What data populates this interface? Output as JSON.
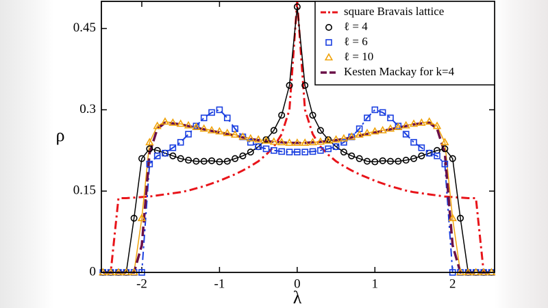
{
  "chart_data": {
    "type": "line",
    "x_label": "λ",
    "y_label": "ρ",
    "xlim": [
      -2.52,
      2.54
    ],
    "ylim": [
      0,
      0.5
    ],
    "xticks": [
      -2,
      -1,
      0,
      1,
      2
    ],
    "yticks": [
      0,
      0.15,
      0.3,
      0.45
    ],
    "legend": "upper right",
    "x": [
      -2.5,
      -2.4,
      -2.3,
      -2.2,
      -2.1,
      -2.0,
      -1.9,
      -1.8,
      -1.7,
      -1.6,
      -1.5,
      -1.4,
      -1.3,
      -1.2,
      -1.1,
      -1.0,
      -0.9,
      -0.8,
      -0.7,
      -0.6,
      -0.5,
      -0.4,
      -0.3,
      -0.2,
      -0.1,
      0,
      0.1,
      0.2,
      0.3,
      0.4,
      0.5,
      0.6,
      0.7,
      0.8,
      0.9,
      1.0,
      1.1,
      1.2,
      1.3,
      1.4,
      1.5,
      1.6,
      1.7,
      1.8,
      1.9,
      2.0,
      2.1,
      2.2,
      2.3,
      2.4,
      2.5
    ],
    "series": [
      {
        "name": "square Bravais lattice",
        "color": "#e8141a",
        "line": "dashdot",
        "width": 3,
        "values": [
          0,
          0,
          0.137,
          0.137,
          0.138,
          0.139,
          0.14,
          0.142,
          0.144,
          0.146,
          0.148,
          0.151,
          0.155,
          0.159,
          0.164,
          0.169,
          0.175,
          0.181,
          0.188,
          0.196,
          0.205,
          0.217,
          0.232,
          0.255,
          0.3,
          0.5,
          0.3,
          0.255,
          0.232,
          0.217,
          0.205,
          0.196,
          0.188,
          0.181,
          0.175,
          0.169,
          0.164,
          0.159,
          0.155,
          0.151,
          0.148,
          0.146,
          0.144,
          0.142,
          0.14,
          0.139,
          0.138,
          0.137,
          0.137,
          0,
          0
        ]
      },
      {
        "name": "ℓ = 4",
        "color": "#000000",
        "line": "solid",
        "width": 1.5,
        "marker": "circle",
        "values": [
          0,
          0,
          0,
          0,
          0.1,
          0.21,
          0.228,
          0.225,
          0.22,
          0.215,
          0.21,
          0.207,
          0.205,
          0.205,
          0.206,
          0.204,
          0.205,
          0.21,
          0.215,
          0.222,
          0.232,
          0.245,
          0.262,
          0.29,
          0.345,
          0.49,
          0.345,
          0.29,
          0.262,
          0.245,
          0.232,
          0.222,
          0.215,
          0.21,
          0.205,
          0.204,
          0.206,
          0.205,
          0.205,
          0.207,
          0.21,
          0.215,
          0.22,
          0.225,
          0.228,
          0.21,
          0.1,
          0,
          0,
          0,
          0
        ]
      },
      {
        "name": "ℓ = 6",
        "color": "#1a3fe0",
        "line": "dashdot",
        "width": 2,
        "marker": "square",
        "values": [
          0,
          0,
          0,
          0,
          0,
          0,
          0.2,
          0.215,
          0.22,
          0.23,
          0.24,
          0.255,
          0.27,
          0.285,
          0.295,
          0.3,
          0.285,
          0.265,
          0.25,
          0.24,
          0.232,
          0.228,
          0.225,
          0.223,
          0.222,
          0.222,
          0.222,
          0.223,
          0.225,
          0.228,
          0.232,
          0.24,
          0.25,
          0.265,
          0.285,
          0.3,
          0.295,
          0.285,
          0.27,
          0.255,
          0.24,
          0.23,
          0.22,
          0.215,
          0.2,
          0,
          0,
          0,
          0,
          0,
          0
        ]
      },
      {
        "name": "ℓ = 10",
        "color": "#f0a30a",
        "line": "solid",
        "width": 1.5,
        "marker": "triangle",
        "values": [
          0,
          0,
          0,
          0,
          0,
          0.1,
          0.24,
          0.27,
          0.278,
          0.276,
          0.274,
          0.271,
          0.268,
          0.265,
          0.262,
          0.26,
          0.257,
          0.254,
          0.25,
          0.247,
          0.245,
          0.243,
          0.241,
          0.24,
          0.239,
          0.239,
          0.239,
          0.24,
          0.241,
          0.243,
          0.245,
          0.247,
          0.25,
          0.254,
          0.257,
          0.26,
          0.262,
          0.265,
          0.268,
          0.271,
          0.274,
          0.276,
          0.278,
          0.27,
          0.24,
          0.1,
          0,
          0,
          0,
          0,
          0
        ]
      },
      {
        "name": "Kesten Mackay for k=4",
        "color": "#6b1048",
        "line": "dashed",
        "width": 3.5,
        "values": [
          0,
          0,
          0,
          0,
          0,
          0.05,
          0.22,
          0.265,
          0.276,
          0.275,
          0.273,
          0.27,
          0.267,
          0.264,
          0.261,
          0.258,
          0.255,
          0.252,
          0.249,
          0.246,
          0.244,
          0.242,
          0.241,
          0.24,
          0.239,
          0.239,
          0.239,
          0.24,
          0.241,
          0.242,
          0.244,
          0.246,
          0.249,
          0.252,
          0.255,
          0.258,
          0.261,
          0.264,
          0.267,
          0.27,
          0.273,
          0.275,
          0.276,
          0.265,
          0.22,
          0.05,
          0,
          0,
          0,
          0,
          0
        ]
      }
    ]
  }
}
